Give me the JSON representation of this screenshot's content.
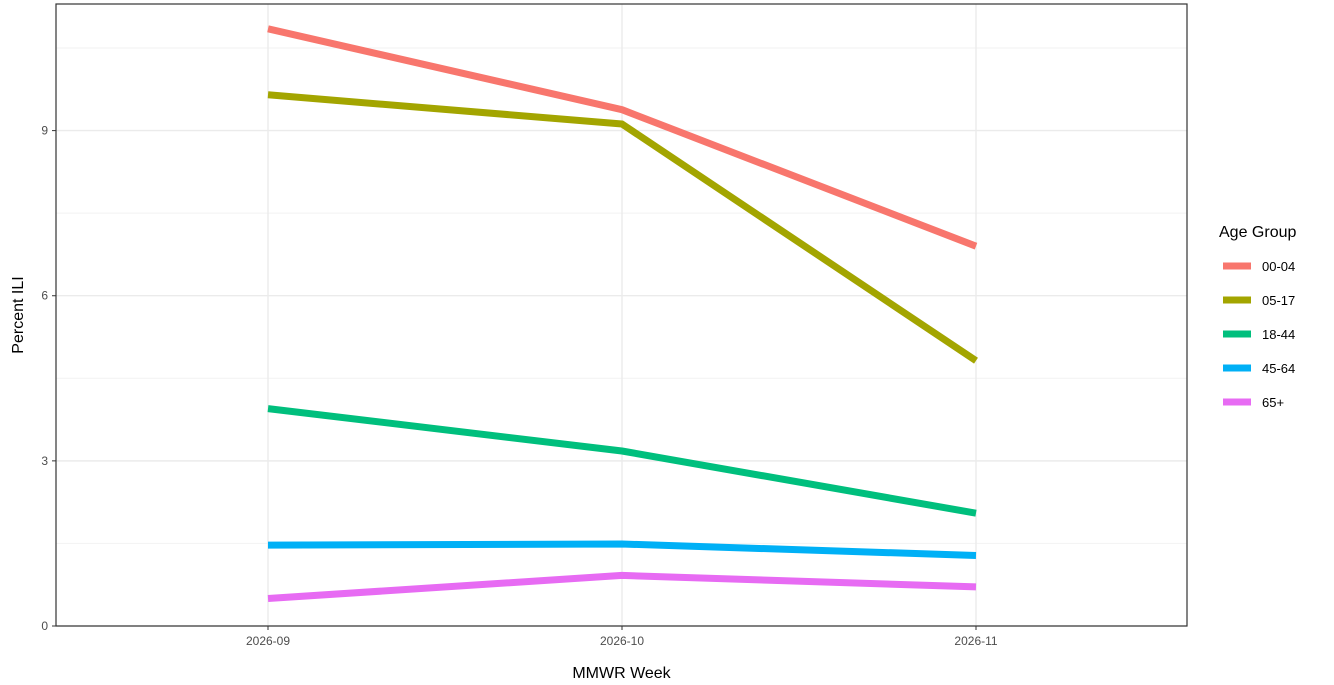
{
  "chart_data": {
    "type": "line",
    "xlabel": "MMWR Week",
    "ylabel": "Percent ILI",
    "categories": [
      "2026-09",
      "2026-10",
      "2026-11"
    ],
    "ylim": [
      0,
      11.3
    ],
    "yticks": [
      0,
      3,
      6,
      9
    ],
    "y_minor_ticks": [
      1.5,
      4.5,
      7.5,
      10.5
    ],
    "grid": true,
    "legend": {
      "title": "Age Group",
      "position": "right"
    },
    "series": [
      {
        "name": "00-04",
        "color": "#F8766D",
        "values": [
          10.85,
          9.38,
          6.9
        ]
      },
      {
        "name": "05-17",
        "color": "#A3A500",
        "values": [
          9.65,
          9.12,
          4.82
        ]
      },
      {
        "name": "18-44",
        "color": "#00BF7D",
        "values": [
          3.95,
          3.18,
          2.05
        ]
      },
      {
        "name": "45-64",
        "color": "#00B0F6",
        "values": [
          1.47,
          1.49,
          1.28
        ]
      },
      {
        "name": "65+",
        "color": "#E76BF3",
        "values": [
          0.5,
          0.92,
          0.71
        ]
      }
    ]
  }
}
